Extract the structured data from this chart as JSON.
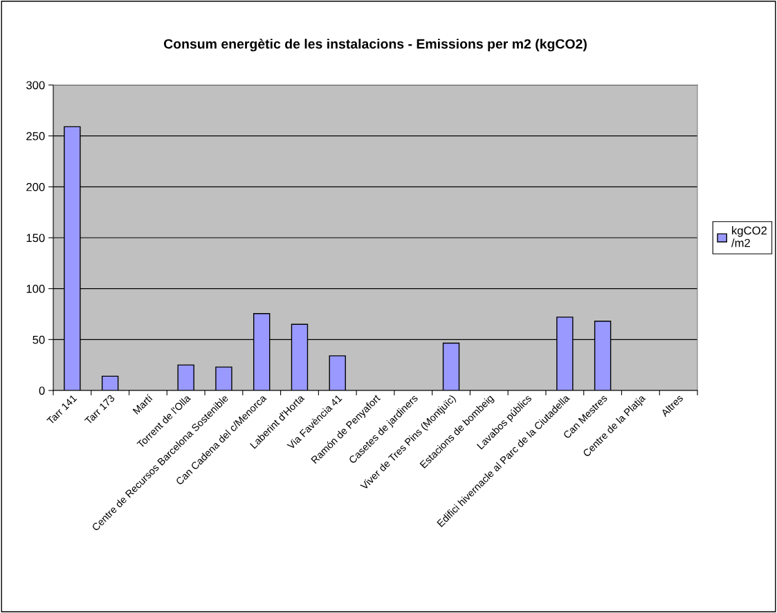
{
  "chart_data": {
    "type": "bar",
    "title": "Consum energètic de les instalacions - Emissions per m2 (kgCO2)",
    "categories": [
      "Tarr 141",
      "Tarr 173",
      "Martí",
      "Torrent de l'Olla",
      "Centre de Recursos Barcelona Sostenible",
      "Can Cadena del c/Menorca",
      "Laberint d'Horta",
      "Via Favència 41",
      "Ramón de Penyafort",
      "Casetes de jardiners",
      "Viver de Tres Pins (Montjuïc)",
      "Estacions de bombeig",
      "Lavabos públics",
      "Edifici hivernacle al Parc de la Ciutadella",
      "Can Mestres",
      "Centre de la Platja",
      "Altres"
    ],
    "series": [
      {
        "name": "kgCO2\n/m2",
        "color": "#9999ff",
        "values": [
          259,
          14,
          null,
          25,
          23,
          75.5,
          65,
          34,
          null,
          null,
          46.5,
          null,
          null,
          72,
          68,
          null,
          null
        ]
      }
    ],
    "ylim": [
      0,
      300
    ],
    "yticks": [
      0,
      50,
      100,
      150,
      200,
      250,
      300
    ],
    "grid": "y",
    "legend": "right"
  }
}
